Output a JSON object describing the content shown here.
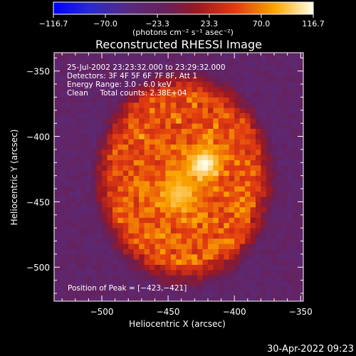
{
  "chart_data": {
    "type": "heatmap",
    "title": "Reconstructed RHESSI Image",
    "xlabel": "Heliocentric X (arcsec)",
    "ylabel": "Heliocentric Y (arcsec)",
    "xlim": [
      -536,
      -348
    ],
    "ylim": [
      -526,
      -336
    ],
    "xticks": [
      -500,
      -450,
      -400,
      -350
    ],
    "yticks": [
      -350,
      -400,
      -450,
      -500
    ],
    "xtick_labels": [
      "−500",
      "−450",
      "−400",
      "−350"
    ],
    "ytick_labels": [
      "−350",
      "−400",
      "−450",
      "−500"
    ],
    "colorbar": {
      "ticks": [
        -116.7,
        -70.0,
        -23.3,
        23.3,
        70.0,
        116.7
      ],
      "tick_labels": [
        "−116.7",
        "−70.0",
        "−23.3",
        "23.3",
        "70.0",
        "116.7"
      ],
      "unit_label": "(photons cm⁻² s⁻¹ asec⁻²)",
      "range": [
        -116.7,
        116.7
      ]
    },
    "annotations": {
      "time_range": "25-Jul-2002 23:23:32.000 to 23:29:32.000",
      "detectors": "Detectors: 3F 4F 5F 6F 7F 8F, Att 1",
      "energy": "Energy Range: 3.0 - 6.0 keV",
      "clean": "Clean     Total counts: 2.38E+04",
      "peak": "Position of Peak = [−423,−421]"
    },
    "sources": [
      {
        "x": -423,
        "y": -421,
        "peak": 116.7,
        "sigma": 9
      },
      {
        "x": -442,
        "y": -444,
        "peak": 95,
        "sigma": 11
      }
    ],
    "emission_region": {
      "center_x": -438,
      "center_y": -432,
      "radius_x": 68,
      "radius_y": 82,
      "level": 55
    },
    "background_level": -30,
    "colors": {
      "background": "#000000",
      "foreground": "#ffffff"
    }
  },
  "footer": {
    "timestamp": "30-Apr-2022 09:23"
  }
}
